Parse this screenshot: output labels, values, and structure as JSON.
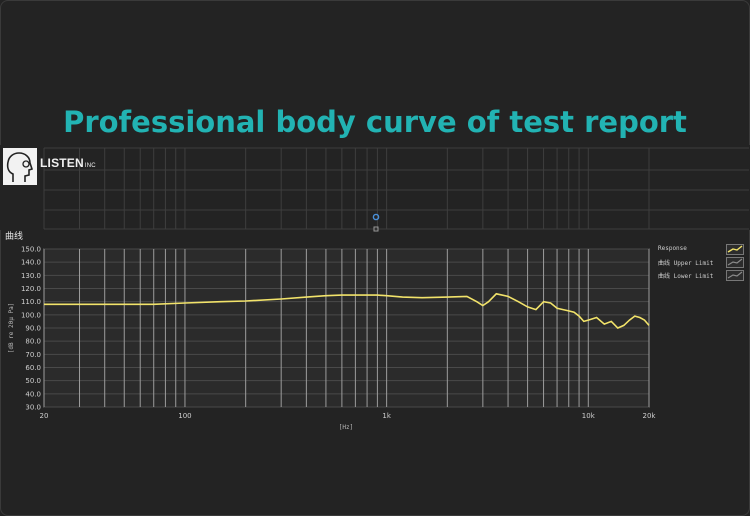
{
  "banner": {
    "title": "Professional body curve of test report"
  },
  "brand": {
    "name": "LISTEN",
    "suffix": "INC"
  },
  "chart_data": {
    "type": "line",
    "title": "曲线",
    "xlabel": "[Hz]",
    "ylabel": "[dB re 20μ Pa]",
    "xscale": "log",
    "xlim": [
      20,
      20000
    ],
    "ylim": [
      30,
      150
    ],
    "grid": true,
    "legend_position": "right",
    "x_ticks": [
      20,
      100,
      1000,
      10000,
      20000
    ],
    "x_tick_labels": [
      "20",
      "100",
      "1k",
      "10k",
      "20k"
    ],
    "y_ticks": [
      30,
      40,
      50,
      60,
      70,
      80,
      90,
      100,
      110,
      120,
      130,
      140,
      150
    ],
    "y_tick_labels": [
      "30.0",
      "40.0",
      "50.0",
      "60.0",
      "70.0",
      "80.0",
      "90.0",
      "100.0",
      "110.0",
      "120.0",
      "130.0",
      "140.0",
      "150.0"
    ],
    "series": [
      {
        "name": "Response",
        "color": "#f2e36a",
        "x": [
          20,
          30,
          50,
          70,
          100,
          150,
          200,
          300,
          400,
          500,
          600,
          700,
          800,
          900,
          1000,
          1200,
          1500,
          2000,
          2500,
          2800,
          3000,
          3200,
          3500,
          4000,
          4500,
          5000,
          5500,
          6000,
          6500,
          7000,
          7500,
          8000,
          8500,
          9000,
          9500,
          10000,
          11000,
          12000,
          13000,
          14000,
          15000,
          16000,
          17000,
          18000,
          19000,
          20000
        ],
        "y": [
          108,
          108,
          108,
          108,
          109,
          110,
          110.5,
          112,
          113.5,
          114.5,
          115,
          115,
          115,
          115,
          114.5,
          113.5,
          113,
          113.5,
          114,
          110,
          107,
          110,
          116,
          114,
          110,
          106,
          104,
          110,
          109,
          105,
          104,
          103,
          102,
          99,
          95,
          96,
          98,
          93,
          95,
          90,
          92,
          96,
          99,
          98,
          96,
          92
        ]
      }
    ],
    "legend": [
      "Response",
      "曲线 Upper Limit",
      "曲线 Lower Limit"
    ]
  }
}
